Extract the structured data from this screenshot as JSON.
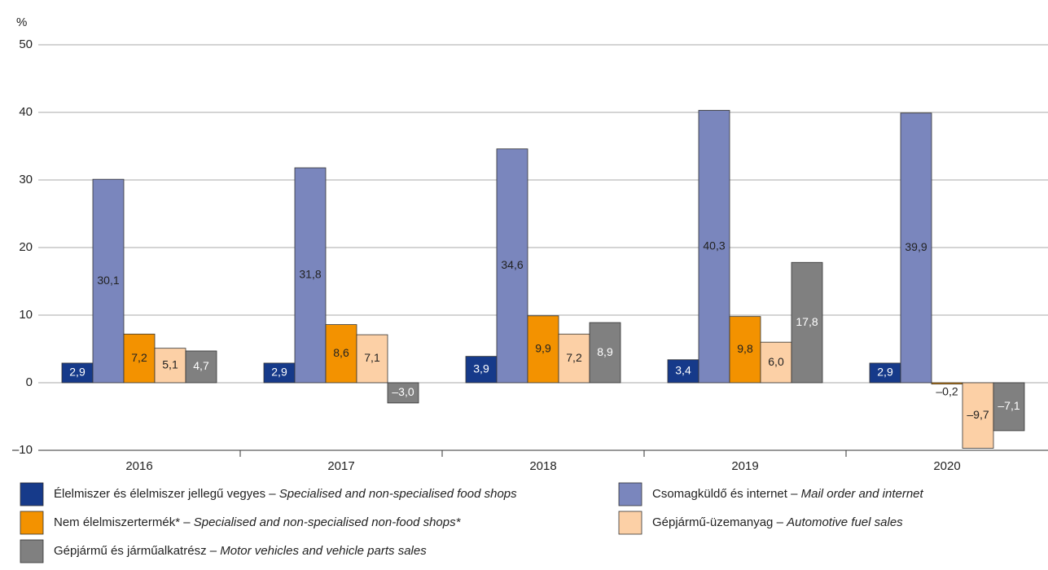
{
  "chart_data": {
    "type": "bar",
    "y_unit": "%",
    "categories": [
      "2016",
      "2017",
      "2018",
      "2019",
      "2020"
    ],
    "series": [
      {
        "name": "Élelmiszer és élelmiszer jellegű vegyes – Specialised and non-specialised food shops",
        "color": "#163a8a",
        "label_color": "#ffffff",
        "values": [
          2.9,
          2.9,
          3.9,
          3.4,
          2.9
        ],
        "value_labels": [
          "2,9",
          "2,9",
          "3,9",
          "3,4",
          "2,9"
        ]
      },
      {
        "name": "Csomagküldő és internet – Mail order and internet",
        "color": "#7a86bd",
        "label_color": "#222222",
        "values": [
          30.1,
          31.8,
          34.6,
          40.3,
          39.9
        ],
        "value_labels": [
          "30,1",
          "31,8",
          "34,6",
          "40,3",
          "39,9"
        ]
      },
      {
        "name": "Nem élelmiszertermék* – Specialised and non-specialised non-food shops*",
        "color": "#f39200",
        "label_color": "#222222",
        "values": [
          7.2,
          8.6,
          9.9,
          9.8,
          -0.2
        ],
        "value_labels": [
          "7,2",
          "8,6",
          "9,9",
          "9,8",
          "–0,2"
        ]
      },
      {
        "name": "Gépjármű-üzemanyag – Automotive fuel sales",
        "color": "#fcd0a6",
        "label_color": "#222222",
        "values": [
          5.1,
          7.1,
          7.2,
          6.0,
          -9.7
        ],
        "value_labels": [
          "5,1",
          "7,1",
          "7,2",
          "6,0",
          "–9,7"
        ]
      },
      {
        "name": "Gépjármű és járműalkatrész – Motor vehicles and vehicle parts sales",
        "color": "#808080",
        "label_color": "#ffffff",
        "values": [
          4.7,
          -3.0,
          8.9,
          17.8,
          -7.1
        ],
        "value_labels": [
          "4,7",
          "–3,0",
          "8,9",
          "17,8",
          "–7,1"
        ]
      }
    ],
    "ylim": [
      -10,
      50
    ],
    "yticks": [
      {
        "value": -10,
        "label": "–10"
      },
      0,
      10,
      20,
      30,
      40,
      50
    ],
    "grid": true
  }
}
